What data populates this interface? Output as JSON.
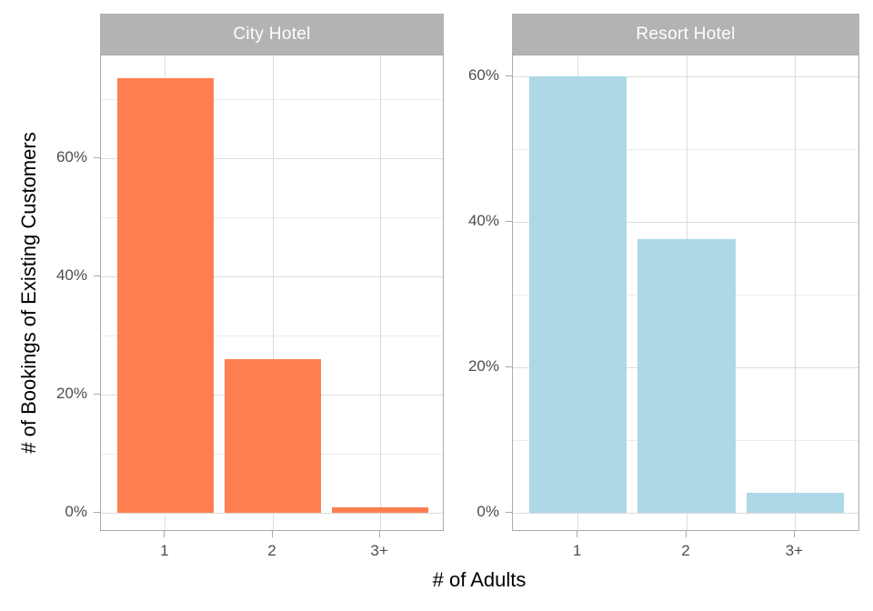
{
  "chart_data": {
    "type": "bar",
    "categories": [
      "1",
      "2",
      "3+"
    ],
    "xlabel": "# of Adults",
    "ylabel": "# of Bookings of Existing Customers",
    "y_tick_format": "percent",
    "legend": "none",
    "grid": true,
    "facets": [
      {
        "label": "City Hotel",
        "bar_color": "#FF7F50",
        "values_pct": [
          73.5,
          26.1,
          1.0
        ],
        "y_major_ticks": [
          0,
          20,
          40,
          60
        ],
        "y_tick_labels": [
          "0%",
          "20%",
          "40%",
          "60%"
        ],
        "y_minor_ticks": [
          10,
          30,
          50,
          70
        ],
        "ylim": [
          -3.2,
          77.4
        ]
      },
      {
        "label": "Resort Hotel",
        "bar_color": "#ADD8E6",
        "values_pct": [
          60.0,
          37.6,
          2.8
        ],
        "y_major_ticks": [
          0,
          20,
          40,
          60
        ],
        "y_tick_labels": [
          "0%",
          "20%",
          "40%",
          "60%"
        ],
        "y_minor_ticks": [
          10,
          30,
          50
        ],
        "ylim": [
          -2.6,
          62.9
        ]
      }
    ]
  },
  "colors": {
    "background": "#FFFFFF",
    "strip_background": "#B3B3B3",
    "strip_text": "#FFFFFF",
    "panel_border": "#ABABAB",
    "grid_major": "#DCDCDC",
    "grid_minor": "#EBEBEB",
    "tick_mark": "#A8A8A8",
    "axis_text": "#4D4D4D",
    "axis_title": "#000000"
  }
}
